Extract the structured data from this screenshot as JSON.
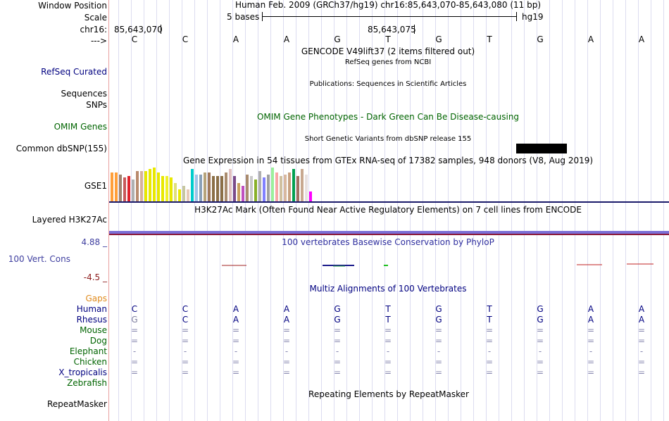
{
  "labels": {
    "window_position": "Window Position",
    "scale": "Scale",
    "chrom": "chr16:",
    "arrow": "--->",
    "refseq": "RefSeq Curated",
    "sequences": "Sequences",
    "snps": "SNPs",
    "omim": "OMIM Genes",
    "dbsnp": "Common dbSNP(155)",
    "gse1": "GSE1",
    "h3k27": "Layered H3K27Ac",
    "cons_top": "4.88 _",
    "vert_cons": "100 Vert. Cons",
    "cons_bottom": "-4.5 _",
    "gaps": "Gaps",
    "repeatmasker": "RepeatMasker"
  },
  "header": {
    "position_text": "Human Feb. 2009 (GRCh37/hg19)   chr16:85,643,070-85,643,080 (11 bp)",
    "scale_text": "5 bases",
    "assembly": "hg19",
    "coord_left": "85,643,070",
    "coord_mid": "85,643,075"
  },
  "bases": [
    "C",
    "C",
    "A",
    "A",
    "G",
    "T",
    "G",
    "T",
    "G",
    "A",
    "A"
  ],
  "track_titles": {
    "gencode": "GENCODE V49lift37 (2 items filtered out)",
    "refseq": "RefSeq genes from NCBI",
    "publications": "Publications: Sequences in Scientific Articles",
    "omim": "OMIM Gene Phenotypes - Dark Green Can Be Disease-causing",
    "dbsnp": "Short Genetic Variants from dbSNP release 155",
    "gtex": "Gene Expression in 54 tissues from GTEx RNA-seq of 17382 samples, 948 donors (V8, Aug 2019)",
    "h3k27": "H3K27Ac Mark (Often Found Near Active Regulatory Elements) on 7 cell lines from ENCODE",
    "phylop": "100 vertebrates Basewise Conservation by PhyloP",
    "multiz": "Multiz Alignments of 100 Vertebrates",
    "repeat": "Repeating Elements by RepeatMasker"
  },
  "alignments": [
    {
      "species": "Human",
      "seq": [
        "C",
        "C",
        "A",
        "A",
        "G",
        "T",
        "G",
        "T",
        "G",
        "A",
        "A"
      ],
      "color": "#000080"
    },
    {
      "species": "Rhesus",
      "seq": [
        "G",
        "C",
        "A",
        "A",
        "G",
        "T",
        "G",
        "T",
        "G",
        "A",
        "A"
      ],
      "color": "#000080"
    },
    {
      "species": "Mouse",
      "seq": [
        "=",
        "=",
        "=",
        "=",
        "=",
        "=",
        "=",
        "=",
        "=",
        "=",
        "="
      ],
      "color": "#006400"
    },
    {
      "species": "Dog",
      "seq": [
        "=",
        "=",
        "=",
        "=",
        "=",
        "=",
        "=",
        "=",
        "=",
        "=",
        "="
      ],
      "color": "#006400"
    },
    {
      "species": "Elephant",
      "seq": [
        "-",
        "-",
        "-",
        "-",
        "-",
        "-",
        "-",
        "-",
        "-",
        "-",
        "-"
      ],
      "color": "#006400"
    },
    {
      "species": "Chicken",
      "seq": [
        "=",
        "=",
        "=",
        "=",
        "=",
        "=",
        "=",
        "=",
        "=",
        "=",
        "="
      ],
      "color": "#006400"
    },
    {
      "species": "X_tropicalis",
      "seq": [
        "=",
        "=",
        "=",
        "=",
        "=",
        "=",
        "=",
        "=",
        "=",
        "=",
        "="
      ],
      "color": "#000080"
    },
    {
      "species": "Zebrafish",
      "seq": [],
      "color": "#006400"
    }
  ],
  "gtex_bar_colors": [
    "#ff9f3a",
    "#ff9f3a",
    "#a0826d",
    "#c85a5a",
    "#e0222b",
    "#b0b0b0",
    "#b98b6e",
    "#d6b19c",
    "#e8e800",
    "#e8e800",
    "#e8e800",
    "#e8e800",
    "#e8e800",
    "#f0f02a",
    "#e8e800",
    "#e0e07a",
    "#e8e800",
    "#c7c7a0",
    "#e6c9b8",
    "#00cccc",
    "#9fc5e8",
    "#8aa0b8",
    "#b6a37a",
    "#a0785a",
    "#8b6f47",
    "#8b6f47",
    "#8b6f47",
    "#a98b6e",
    "#e0c0c0",
    "#7a4a8a",
    "#c8a060",
    "#c050c0",
    "#a98b6e",
    "#c9c9c9",
    "#88b028",
    "#b0b0b0",
    "#8080ff",
    "#9f9f9f",
    "#9cf09c",
    "#f7a8a8",
    "#d0c0a0",
    "#d8b8a0",
    "#c8a080",
    "#00a050",
    "#a07060",
    "#c8a890",
    "#e8e0e0",
    "#ff00ff"
  ],
  "gtex_bar_values": [
    0.85,
    0.85,
    0.8,
    0.7,
    0.75,
    0.65,
    0.9,
    0.9,
    0.9,
    0.95,
    1.0,
    0.85,
    0.75,
    0.75,
    0.7,
    0.55,
    0.35,
    0.45,
    0.35,
    0.95,
    0.8,
    0.8,
    0.85,
    0.85,
    0.75,
    0.75,
    0.75,
    0.85,
    0.95,
    0.75,
    0.55,
    0.45,
    0.8,
    0.75,
    0.65,
    0.9,
    0.7,
    0.8,
    1.0,
    0.85,
    0.75,
    0.8,
    0.85,
    0.95,
    0.75,
    0.95,
    0.8,
    0.3
  ]
}
